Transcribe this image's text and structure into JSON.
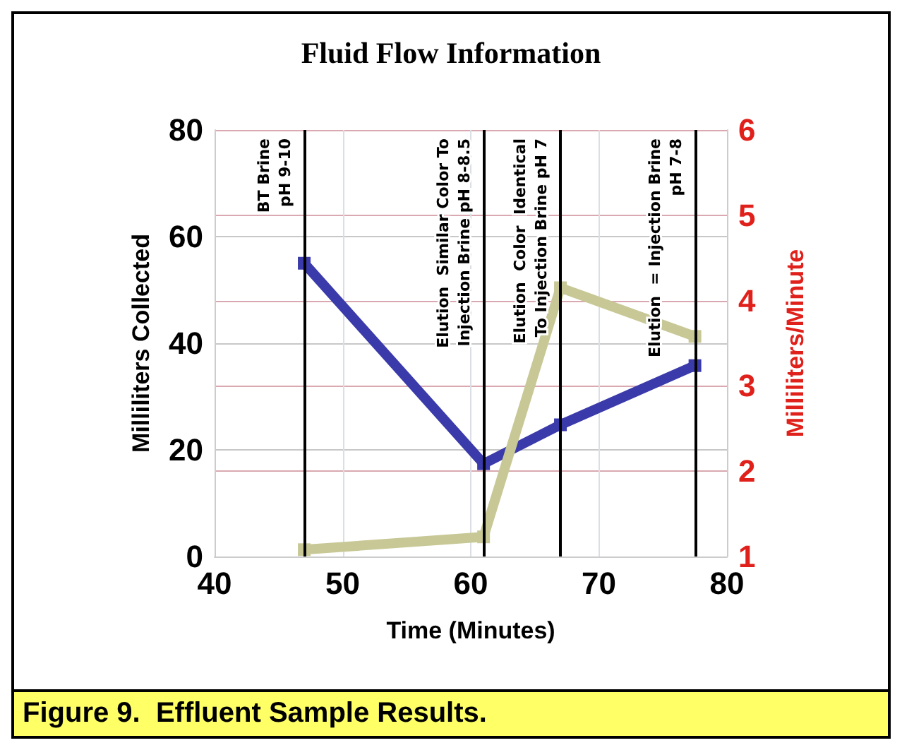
{
  "chart_data": {
    "type": "line",
    "title": "Fluid Flow Information",
    "xlabel": "Time (Minutes)",
    "ylabel": "Milliliters Collected",
    "y2label": "Milliliters/Minute",
    "x": [
      47,
      61,
      67,
      77.5
    ],
    "series": [
      {
        "color": "#3a3aaa",
        "values": [
          55,
          17.4,
          24.7,
          35.8
        ]
      },
      {
        "color": "#c8c896",
        "values": [
          1.08,
          1.23,
          4.15,
          3.58
        ],
        "axis": "y2"
      }
    ],
    "xlim": [
      40,
      80
    ],
    "xticks": [
      40,
      50,
      60,
      70,
      80
    ],
    "ylim": [
      0,
      80
    ],
    "yticks": [
      0,
      20,
      40,
      60,
      80
    ],
    "y2lim": [
      1,
      6
    ],
    "y2ticks": [
      1,
      2,
      3,
      4,
      5,
      6
    ],
    "grid": true,
    "marker": "square",
    "line_style": "solid",
    "ref_lines": [
      {
        "axis": "x",
        "value": 47,
        "label": "BT Brine\npH 9-10",
        "color": "#000000"
      },
      {
        "axis": "x",
        "value": 61,
        "label": "Elution  Similar Color To\nInjection Brine pH 8-8.5",
        "color": "#000000"
      },
      {
        "axis": "x",
        "value": 67,
        "label": "Elution  Color  Identical\nTo Injection Brine pH 7",
        "color": "#000000"
      },
      {
        "axis": "x",
        "value": 77.5,
        "label": "Elution  = Injection Brine\npH 7-8",
        "color": "#000000"
      }
    ],
    "annotations": [
      "Figure 9.  Effluent Sample Results."
    ]
  }
}
